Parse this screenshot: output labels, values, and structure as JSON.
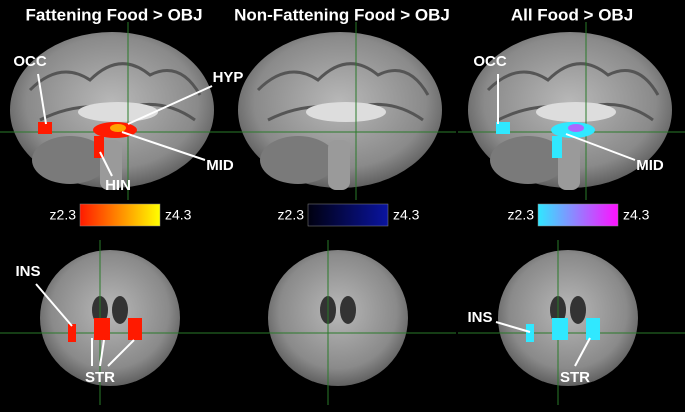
{
  "panels": [
    {
      "title": "Fattening Food > OBJ",
      "colorbar": {
        "min_label": "z2.3",
        "max_label": "z4.3",
        "colors": [
          "#ff1a00",
          "#ffff00"
        ]
      },
      "sagittal_labels": [
        "OCC",
        "HYP",
        "MID",
        "HIN"
      ],
      "coronal_labels": [
        "INS",
        "STR"
      ]
    },
    {
      "title": "Non-Fattening Food > OBJ",
      "colorbar": {
        "min_label": "z2.3",
        "max_label": "z4.3",
        "colors": [
          "#000010",
          "#0a14a0"
        ]
      },
      "sagittal_labels": [],
      "coronal_labels": []
    },
    {
      "title": "All Food > OBJ",
      "colorbar": {
        "min_label": "z2.3",
        "max_label": "z4.3",
        "colors": [
          "#30e8ff",
          "#ff10ff"
        ]
      },
      "sagittal_labels": [
        "OCC",
        "MID"
      ],
      "coronal_labels": [
        "INS",
        "STR"
      ]
    }
  ]
}
